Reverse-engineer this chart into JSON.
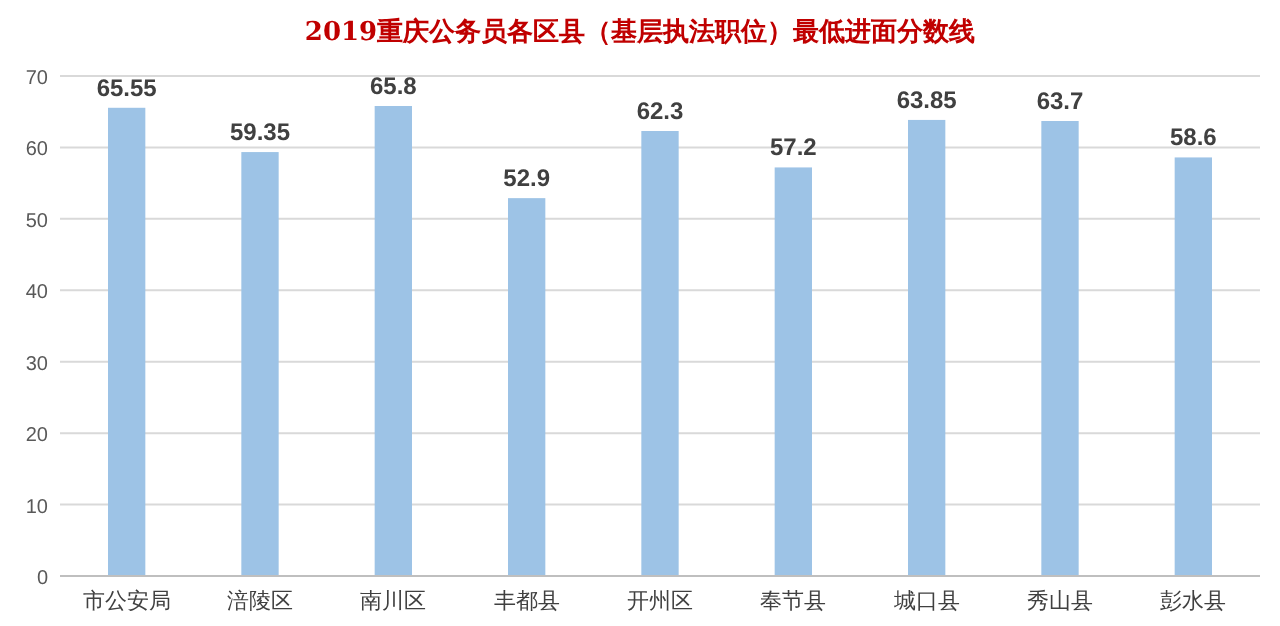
{
  "chart_data": {
    "type": "bar",
    "title": "2019重庆公务员各区县（基层执法职位）最低进面分数线",
    "categories": [
      "市公安局",
      "涪陵区",
      "南川区",
      "丰都县",
      "开州区",
      "奉节县",
      "城口县",
      "秀山县",
      "彭水县"
    ],
    "values": [
      65.55,
      59.35,
      65.8,
      52.9,
      62.3,
      57.2,
      63.85,
      63.7,
      58.6
    ],
    "color": "#9dc3e6",
    "ylim": [
      0,
      70
    ],
    "yticks": [
      0,
      10,
      20,
      30,
      40,
      50,
      60,
      70
    ],
    "grid": "y",
    "data_labels": true
  }
}
